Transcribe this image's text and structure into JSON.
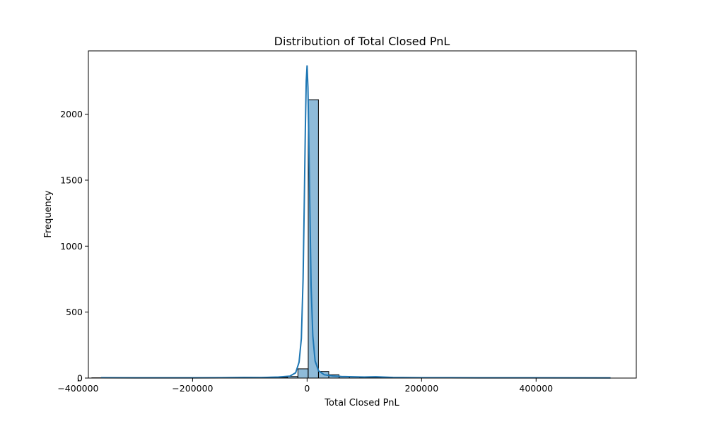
{
  "chart_data": {
    "type": "bar",
    "title": "Distribution of Total Closed PnL",
    "xlabel": "Total Closed PnL",
    "ylabel": "Frequency",
    "xlim": [
      -382000,
      575000
    ],
    "ylim": [
      0,
      2480
    ],
    "x_ticks": [
      -400000,
      -200000,
      0,
      200000,
      400000
    ],
    "x_tick_labels": [
      "−400000",
      "−200000",
      "0",
      "200000",
      "400000"
    ],
    "y_ticks": [
      0,
      500,
      1000,
      1500,
      2000
    ],
    "y_tick_labels": [
      "0",
      "500",
      "1000",
      "1500",
      "2000"
    ],
    "grid": false,
    "legend": "none",
    "bar_color": "#1f77b4",
    "bar_fill_opacity": 0.5,
    "bar_edge_color": "#000000",
    "kde_color": "#1f77b4",
    "bin_width": 17800,
    "bins": [
      {
        "x0": -376000,
        "count": 2
      },
      {
        "x0": -358000,
        "count": 1
      },
      {
        "x0": -340000,
        "count": 0
      },
      {
        "x0": -322000,
        "count": 1
      },
      {
        "x0": -304000,
        "count": 0
      },
      {
        "x0": -286000,
        "count": 1
      },
      {
        "x0": -268000,
        "count": 0
      },
      {
        "x0": -250000,
        "count": 1
      },
      {
        "x0": -232000,
        "count": 0
      },
      {
        "x0": -214000,
        "count": 1
      },
      {
        "x0": -196000,
        "count": 1
      },
      {
        "x0": -178000,
        "count": 0
      },
      {
        "x0": -160000,
        "count": 1
      },
      {
        "x0": -142000,
        "count": 2
      },
      {
        "x0": -124000,
        "count": 2
      },
      {
        "x0": -106000,
        "count": 3
      },
      {
        "x0": -88000,
        "count": 2
      },
      {
        "x0": -70000,
        "count": 3
      },
      {
        "x0": -52000,
        "count": 6
      },
      {
        "x0": -34000,
        "count": 12
      },
      {
        "x0": -16000,
        "count": 70
      },
      {
        "x0": 2000,
        "count": 2110
      },
      {
        "x0": 20000,
        "count": 50
      },
      {
        "x0": 38000,
        "count": 25
      },
      {
        "x0": 56000,
        "count": 10
      },
      {
        "x0": 74000,
        "count": 8
      },
      {
        "x0": 92000,
        "count": 5
      },
      {
        "x0": 110000,
        "count": 6
      },
      {
        "x0": 128000,
        "count": 4
      },
      {
        "x0": 146000,
        "count": 3
      },
      {
        "x0": 164000,
        "count": 2
      },
      {
        "x0": 182000,
        "count": 2
      },
      {
        "x0": 200000,
        "count": 1
      },
      {
        "x0": 218000,
        "count": 1
      },
      {
        "x0": 236000,
        "count": 1
      },
      {
        "x0": 254000,
        "count": 1
      },
      {
        "x0": 272000,
        "count": 2
      },
      {
        "x0": 290000,
        "count": 1
      },
      {
        "x0": 308000,
        "count": 0
      },
      {
        "x0": 326000,
        "count": 1
      },
      {
        "x0": 344000,
        "count": 0
      },
      {
        "x0": 362000,
        "count": 1
      },
      {
        "x0": 380000,
        "count": 1
      },
      {
        "x0": 398000,
        "count": 0
      },
      {
        "x0": 416000,
        "count": 1
      },
      {
        "x0": 434000,
        "count": 1
      },
      {
        "x0": 452000,
        "count": 0
      },
      {
        "x0": 470000,
        "count": 1
      },
      {
        "x0": 488000,
        "count": 0
      },
      {
        "x0": 506000,
        "count": 1
      }
    ],
    "kde": {
      "x": [
        -360000,
        -300000,
        -200000,
        -150000,
        -110000,
        -80000,
        -50000,
        -30000,
        -20000,
        -14000,
        -10000,
        -7000,
        -5000,
        -3000,
        -1500,
        0,
        1500,
        3000,
        5000,
        7000,
        10000,
        14000,
        20000,
        30000,
        45000,
        60000,
        80000,
        100000,
        120000,
        150000,
        200000,
        300000,
        400000,
        530000
      ],
      "y": [
        3,
        2,
        2,
        3,
        5,
        4,
        8,
        15,
        40,
        120,
        300,
        750,
        1300,
        1900,
        2250,
        2370,
        2200,
        1800,
        1250,
        700,
        320,
        130,
        55,
        25,
        16,
        12,
        10,
        8,
        10,
        5,
        3,
        2,
        2,
        1
      ]
    }
  }
}
